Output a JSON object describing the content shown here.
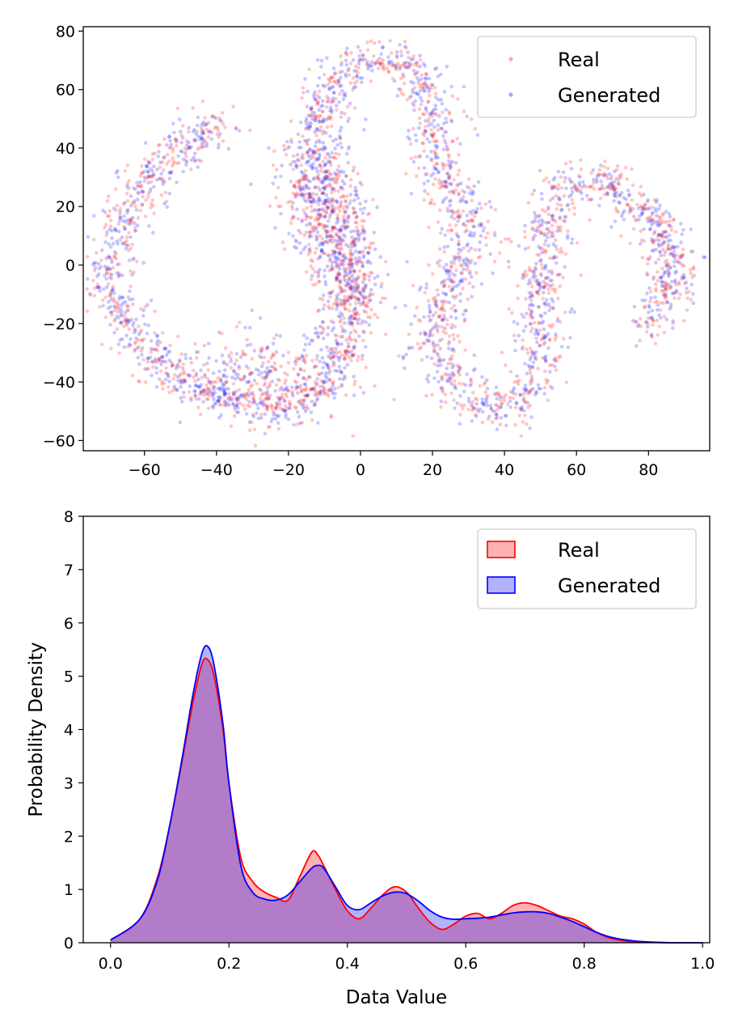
{
  "chart_data": [
    {
      "type": "scatter",
      "title": "",
      "xlabel": "",
      "ylabel": "",
      "xlim": [
        -77,
        97
      ],
      "ylim": [
        -63.5,
        81.5
      ],
      "x_ticks": [
        -60,
        -40,
        -20,
        0,
        20,
        40,
        60,
        80
      ],
      "x_tick_labels": [
        "−60",
        "−40",
        "−20",
        "0",
        "20",
        "40",
        "60",
        "80"
      ],
      "y_ticks": [
        -60,
        -40,
        -20,
        0,
        20,
        40,
        60,
        80
      ],
      "y_tick_labels": [
        "−60",
        "−40",
        "−20",
        "0",
        "20",
        "40",
        "60",
        "80"
      ],
      "legend_position": "top-right",
      "series": [
        {
          "name": "Real",
          "color": "#ff0000",
          "opacity": 0.22
        },
        {
          "name": "Generated",
          "color": "#0000ff",
          "opacity": 0.22
        }
      ],
      "path_points": [
        [
          -38,
          50
        ],
        [
          -42,
          47
        ],
        [
          -46,
          43
        ],
        [
          -50,
          40
        ],
        [
          -54,
          36
        ],
        [
          -58,
          30
        ],
        [
          -62,
          22
        ],
        [
          -66,
          14
        ],
        [
          -69,
          6
        ],
        [
          -70,
          -2
        ],
        [
          -70,
          -10
        ],
        [
          -66,
          -18
        ],
        [
          -62,
          -25
        ],
        [
          -57,
          -32
        ],
        [
          -52,
          -37
        ],
        [
          -46,
          -41
        ],
        [
          -40,
          -44
        ],
        [
          -33,
          -47
        ],
        [
          -26,
          -49
        ],
        [
          -19,
          -48
        ],
        [
          -13,
          -44
        ],
        [
          -8,
          -38
        ],
        [
          -5,
          -30
        ],
        [
          -3,
          -22
        ],
        [
          -2,
          -13
        ],
        [
          -3,
          -4
        ],
        [
          -5,
          5
        ],
        [
          -7,
          15
        ],
        [
          -10,
          25
        ],
        [
          -11,
          35
        ],
        [
          -12,
          45
        ],
        [
          -11,
          54
        ],
        [
          -8,
          60
        ],
        [
          -4,
          66
        ],
        [
          0,
          70
        ],
        [
          7,
          70
        ],
        [
          14,
          68
        ],
        [
          18,
          62
        ],
        [
          20,
          52
        ],
        [
          20,
          42
        ],
        [
          22,
          32
        ],
        [
          26,
          24
        ],
        [
          30,
          17
        ],
        [
          30,
          8
        ],
        [
          27,
          -1
        ],
        [
          24,
          -10
        ],
        [
          21,
          -20
        ],
        [
          21,
          -30
        ],
        [
          25,
          -39
        ],
        [
          31,
          -46
        ],
        [
          37,
          -50
        ],
        [
          43,
          -48
        ],
        [
          48,
          -42
        ],
        [
          50,
          -32
        ],
        [
          50,
          -20
        ],
        [
          50,
          -8
        ],
        [
          51,
          4
        ],
        [
          52,
          14
        ],
        [
          54,
          22
        ],
        [
          58,
          28
        ],
        [
          64,
          30
        ],
        [
          70,
          27
        ],
        [
          75,
          21
        ],
        [
          81,
          15
        ],
        [
          85,
          8
        ],
        [
          87,
          0
        ],
        [
          86,
          -8
        ],
        [
          83,
          -15
        ],
        [
          80,
          -22
        ]
      ],
      "blob_regions": [
        {
          "center": [
            -27,
            -38
          ],
          "spread": [
            11,
            8
          ]
        },
        {
          "center": [
            -5,
            0
          ],
          "spread": [
            5,
            14
          ]
        },
        {
          "center": [
            -12,
            25
          ],
          "spread": [
            6,
            10
          ]
        }
      ]
    },
    {
      "type": "area",
      "title": "",
      "xlabel": "Data Value",
      "ylabel": "Probability Density",
      "xlim": [
        -0.046,
        1.012
      ],
      "ylim": [
        0,
        8
      ],
      "x_ticks": [
        0.0,
        0.2,
        0.4,
        0.6,
        0.8,
        1.0
      ],
      "x_tick_labels": [
        "0.0",
        "0.2",
        "0.4",
        "0.6",
        "0.8",
        "1.0"
      ],
      "y_ticks": [
        0,
        1,
        2,
        3,
        4,
        5,
        6,
        7,
        8
      ],
      "y_tick_labels": [
        "0",
        "1",
        "2",
        "3",
        "4",
        "5",
        "6",
        "7",
        "8"
      ],
      "legend_position": "top-right",
      "series": [
        {
          "name": "Real",
          "color": "#ff0000",
          "fill": "#ff0000",
          "fill_opacity": 0.3,
          "x": [
            0.0,
            0.05,
            0.08,
            0.1,
            0.12,
            0.14,
            0.155,
            0.165,
            0.175,
            0.19,
            0.2,
            0.22,
            0.24,
            0.26,
            0.28,
            0.3,
            0.32,
            0.34,
            0.35,
            0.36,
            0.38,
            0.4,
            0.42,
            0.44,
            0.46,
            0.48,
            0.5,
            0.52,
            0.54,
            0.56,
            0.58,
            0.6,
            0.62,
            0.64,
            0.66,
            0.68,
            0.7,
            0.72,
            0.74,
            0.76,
            0.78,
            0.8,
            0.82,
            0.84,
            0.86,
            0.88,
            0.9,
            0.95,
            1.0
          ],
          "y": [
            0.05,
            0.45,
            1.25,
            2.2,
            3.35,
            4.55,
            5.25,
            5.3,
            5.0,
            4.0,
            3.0,
            1.6,
            1.15,
            0.95,
            0.85,
            0.8,
            1.25,
            1.7,
            1.65,
            1.45,
            1.0,
            0.6,
            0.45,
            0.65,
            0.9,
            1.05,
            0.95,
            0.65,
            0.38,
            0.25,
            0.35,
            0.5,
            0.55,
            0.45,
            0.55,
            0.7,
            0.75,
            0.7,
            0.6,
            0.5,
            0.45,
            0.35,
            0.2,
            0.1,
            0.05,
            0.02,
            0.01,
            0.0,
            0.0
          ]
        },
        {
          "name": "Generated",
          "color": "#0000ff",
          "fill": "#0000ff",
          "fill_opacity": 0.3,
          "x": [
            0.0,
            0.05,
            0.08,
            0.1,
            0.12,
            0.14,
            0.155,
            0.165,
            0.175,
            0.19,
            0.2,
            0.22,
            0.24,
            0.26,
            0.28,
            0.3,
            0.32,
            0.34,
            0.35,
            0.36,
            0.38,
            0.4,
            0.42,
            0.44,
            0.46,
            0.48,
            0.5,
            0.52,
            0.54,
            0.56,
            0.58,
            0.6,
            0.62,
            0.64,
            0.66,
            0.68,
            0.7,
            0.72,
            0.74,
            0.76,
            0.78,
            0.8,
            0.82,
            0.84,
            0.86,
            0.88,
            0.9,
            0.95,
            1.0
          ],
          "y": [
            0.05,
            0.45,
            1.2,
            2.2,
            3.4,
            4.7,
            5.45,
            5.55,
            5.2,
            4.1,
            3.0,
            1.45,
            0.95,
            0.82,
            0.8,
            0.9,
            1.15,
            1.4,
            1.45,
            1.4,
            1.05,
            0.7,
            0.62,
            0.75,
            0.88,
            0.95,
            0.92,
            0.78,
            0.6,
            0.48,
            0.44,
            0.45,
            0.46,
            0.48,
            0.52,
            0.56,
            0.58,
            0.58,
            0.55,
            0.48,
            0.4,
            0.3,
            0.2,
            0.12,
            0.07,
            0.04,
            0.02,
            0.0,
            0.0
          ]
        }
      ]
    }
  ]
}
